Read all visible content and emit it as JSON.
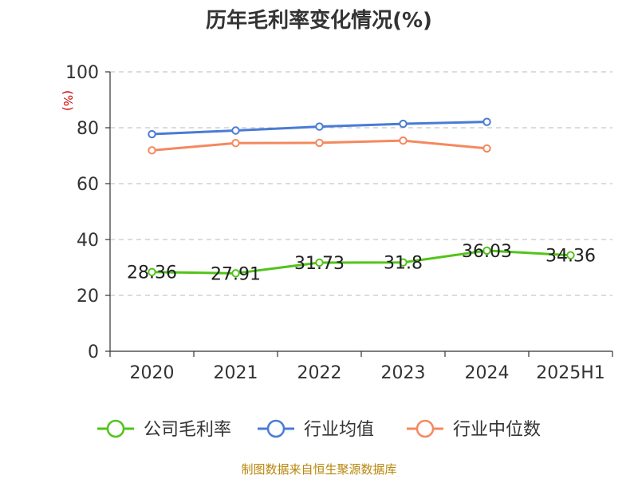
{
  "chart_data": {
    "type": "line",
    "title": "历年毛利率变化情况(%)",
    "ylabel": "(%)",
    "categories": [
      "2020",
      "2021",
      "2022",
      "2023",
      "2024",
      "2025H1"
    ],
    "ylim": [
      0,
      100
    ],
    "yticks": [
      "0",
      "20",
      "40",
      "60",
      "80",
      "100"
    ],
    "grid": true,
    "legend_position": "bottom",
    "series": [
      {
        "name": "公司毛利率",
        "color": "#52c41a",
        "values": [
          28.36,
          27.91,
          31.73,
          31.8,
          36.03,
          34.36
        ],
        "labels": [
          "28.36",
          "27.91",
          "31.73",
          "31.8",
          "36.03",
          "34.36"
        ]
      },
      {
        "name": "行业均值",
        "color": "#4a7bd6",
        "values": [
          77.7,
          79.0,
          80.4,
          81.4,
          82.1,
          null
        ]
      },
      {
        "name": "行业中位数",
        "color": "#f4895f",
        "values": [
          71.9,
          74.5,
          74.6,
          75.4,
          72.6,
          null
        ]
      }
    ]
  },
  "footer": {
    "source": "制图数据来自恒生聚源数据库"
  }
}
